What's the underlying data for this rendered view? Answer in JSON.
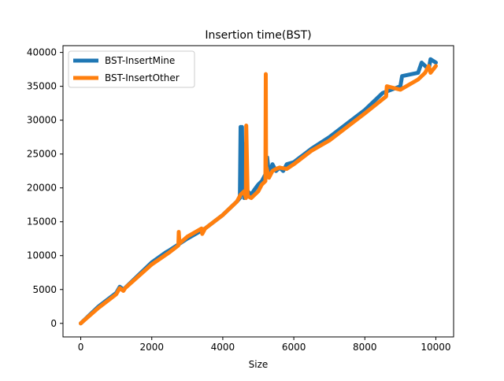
{
  "chart_data": {
    "type": "line",
    "title": "Insertion time(BST)",
    "xlabel": "Size",
    "ylabel": "",
    "xlim": [
      -500,
      10500
    ],
    "ylim": [
      -2000,
      41000
    ],
    "x_ticks": [
      0,
      2000,
      4000,
      6000,
      8000,
      10000
    ],
    "x_tick_labels": [
      "0",
      "2000",
      "4000",
      "6000",
      "8000",
      "10000"
    ],
    "y_ticks": [
      0,
      5000,
      10000,
      15000,
      20000,
      25000,
      30000,
      35000,
      40000
    ],
    "y_tick_labels": [
      "0",
      "5000",
      "10000",
      "15000",
      "20000",
      "25000",
      "30000",
      "35000",
      "40000"
    ],
    "grid": false,
    "legend_position": "upper-left",
    "series": [
      {
        "name": "BST-InsertMine",
        "color": "#1f77b4",
        "x": [
          0,
          500,
          1000,
          1100,
          1200,
          2000,
          2400,
          2500,
          3000,
          3500,
          4000,
          4400,
          4480,
          4500,
          4520,
          4540,
          4560,
          4580,
          4600,
          4700,
          4800,
          4900,
          5000,
          5100,
          5200,
          5250,
          5300,
          5400,
          5500,
          5600,
          5700,
          5800,
          6000,
          6500,
          7000,
          7500,
          8000,
          8500,
          9000,
          9050,
          9500,
          9600,
          9800,
          9850,
          10000
        ],
        "y": [
          0,
          2500,
          4500,
          5400,
          5000,
          9000,
          10500,
          10800,
          12500,
          14000,
          16000,
          18000,
          18500,
          29000,
          19000,
          29000,
          19000,
          26500,
          18500,
          19500,
          19000,
          19800,
          20500,
          21000,
          22000,
          24500,
          22000,
          23500,
          22500,
          23000,
          22500,
          23500,
          23800,
          25800,
          27500,
          29500,
          31500,
          34000,
          35000,
          36500,
          37000,
          38500,
          37500,
          39000,
          38500
        ]
      },
      {
        "name": "BST-InsertOther",
        "color": "#ff7f0e",
        "x": [
          0,
          500,
          1000,
          1100,
          1200,
          1250,
          2000,
          2500,
          2750,
          2760,
          2780,
          3000,
          3400,
          3420,
          3500,
          4000,
          4400,
          4500,
          4600,
          4650,
          4660,
          4700,
          4800,
          5000,
          5100,
          5200,
          5210,
          5220,
          5230,
          5300,
          5400,
          5500,
          5600,
          5800,
          6000,
          6500,
          7000,
          7500,
          8000,
          8600,
          8620,
          9000,
          9500,
          9700,
          9800,
          9850,
          10000
        ],
        "y": [
          0,
          2300,
          4300,
          5200,
          4800,
          5200,
          8700,
          10500,
          11500,
          13500,
          11800,
          12800,
          14000,
          13200,
          14000,
          16000,
          18000,
          19000,
          19500,
          18500,
          29200,
          18800,
          18500,
          19500,
          20500,
          21000,
          36800,
          21500,
          23000,
          21500,
          22500,
          22800,
          23000,
          22800,
          23500,
          25500,
          27000,
          29000,
          31000,
          33500,
          35000,
          34500,
          36000,
          37000,
          38000,
          37000,
          38000
        ]
      }
    ]
  }
}
